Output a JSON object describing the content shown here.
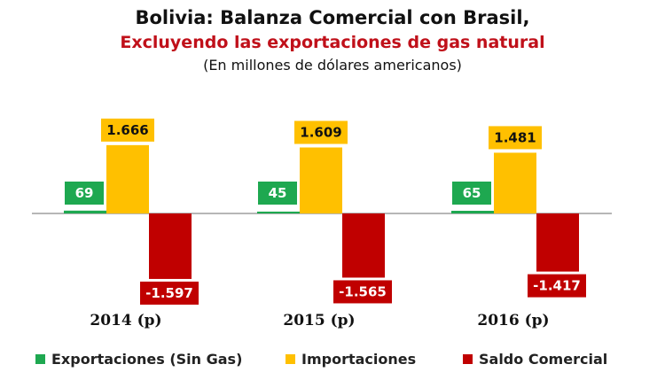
{
  "header": {
    "title": "Bolivia: Balanza Comercial con Brasil,",
    "subtitle": "Excluyendo las exportaciones de gas natural",
    "units": "(En millones de dólares americanos)"
  },
  "colors": {
    "exportaciones": "#1ea850",
    "importaciones": "#ffc000",
    "saldo": "#c00000",
    "axis": "#9e9e9e"
  },
  "chart_data": {
    "type": "bar",
    "categories": [
      "2014 (p)",
      "2015 (p)",
      "2016 (p)"
    ],
    "series": [
      {
        "name": "Exportaciones (Sin Gas)",
        "values": [
          69,
          45,
          65
        ],
        "labels": [
          "69",
          "45",
          "65"
        ]
      },
      {
        "name": "Importaciones",
        "values": [
          1666,
          1609,
          1481
        ],
        "labels": [
          "1.666",
          "1.609",
          "1.481"
        ]
      },
      {
        "name": "Saldo Comercial",
        "values": [
          -1597,
          -1565,
          -1417
        ],
        "labels": [
          "-1.597",
          "-1.565",
          "-1.417"
        ]
      }
    ],
    "ylim": [
      -1900,
      1800
    ],
    "grid": false,
    "legend": "bottom"
  }
}
